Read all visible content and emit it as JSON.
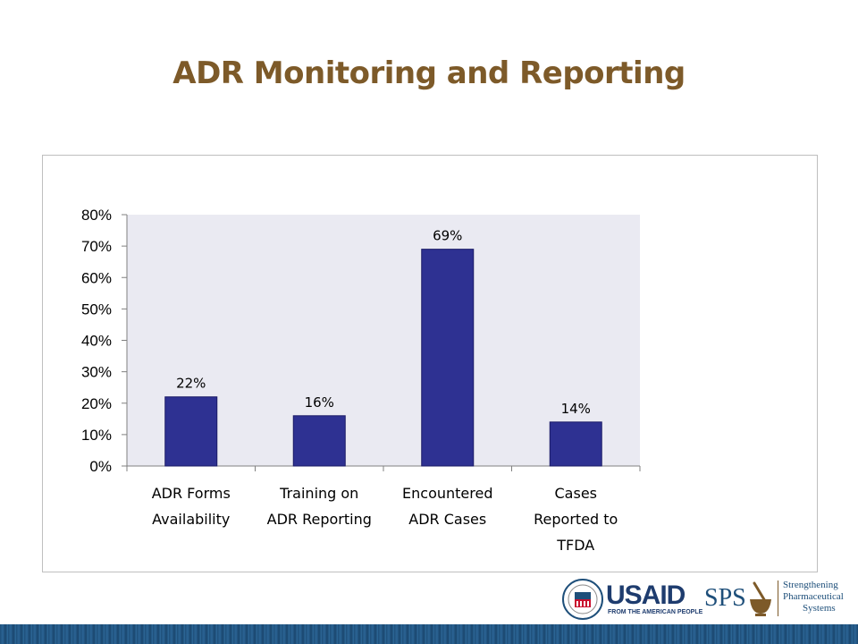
{
  "title": "ADR Monitoring and Reporting",
  "chart_data": {
    "type": "bar",
    "title": "",
    "xlabel": "",
    "ylabel": "",
    "categories": [
      [
        "ADR Forms",
        "Availability"
      ],
      [
        "Training on",
        "ADR Reporting"
      ],
      [
        "Encountered",
        "ADR Cases"
      ],
      [
        "Cases",
        "Reported to",
        "TFDA"
      ]
    ],
    "values": [
      22,
      16,
      69,
      14
    ],
    "data_labels": [
      "22%",
      "16%",
      "69%",
      "14%"
    ],
    "ylim": [
      0,
      80
    ],
    "yticks": [
      0,
      10,
      20,
      30,
      40,
      50,
      60,
      70,
      80
    ],
    "ytick_labels": [
      "0%",
      "10%",
      "20%",
      "30%",
      "40%",
      "50%",
      "60%",
      "70%",
      "80%"
    ],
    "grid": false,
    "legend": "none",
    "bar_color": "#2e3192",
    "plot_background": "#eaeaf2"
  },
  "logos": {
    "usaid": "USAID",
    "usaid_tagline": "FROM THE AMERICAN PEOPLE",
    "sps": "SPS",
    "sps_line1": "Strengthening",
    "sps_line2": "Pharmaceutical",
    "sps_line3": "Systems"
  }
}
